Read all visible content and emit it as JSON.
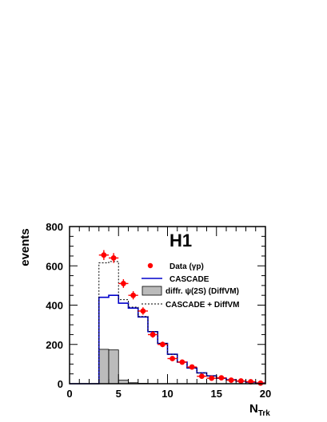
{
  "chart_data": {
    "type": "histogram",
    "experiment_label": "H1",
    "xlabel_main": "N",
    "xlabel_sub": "Trk",
    "ylabel": "events",
    "xlim": [
      0,
      20
    ],
    "ylim": [
      0,
      800
    ],
    "x_ticks": [
      0,
      5,
      10,
      15,
      20
    ],
    "y_ticks": [
      0,
      200,
      400,
      600,
      800
    ],
    "bin_edges": [
      0,
      1,
      2,
      3,
      4,
      5,
      6,
      7,
      8,
      9,
      10,
      11,
      12,
      13,
      14,
      15,
      16,
      17,
      18,
      19,
      20
    ],
    "series": [
      {
        "name": "Data (γp)",
        "kind": "points",
        "color": "#ff0000",
        "x": [
          3.5,
          4.5,
          5.5,
          6.5,
          7.5,
          8.5,
          9.5,
          10.5,
          11.5,
          12.5,
          13.5,
          14.5,
          15.5,
          16.5,
          17.5,
          18.5,
          19.5
        ],
        "y": [
          655,
          640,
          510,
          450,
          370,
          250,
          200,
          128,
          110,
          85,
          38,
          28,
          30,
          18,
          14,
          10,
          3
        ],
        "yerr": [
          25,
          25,
          22,
          21,
          19,
          16,
          14,
          11,
          10,
          9,
          6,
          5,
          5,
          4,
          4,
          3,
          2
        ]
      },
      {
        "name": "CASCADE",
        "kind": "step",
        "color": "#0000cc",
        "values": [
          0,
          0,
          0,
          440,
          450,
          410,
          385,
          340,
          265,
          205,
          150,
          110,
          80,
          55,
          40,
          28,
          20,
          13,
          8,
          4
        ]
      },
      {
        "name": "diffr. ψ(2S) (DiffVM)",
        "kind": "filled",
        "color": "#bbbbbb",
        "values": [
          0,
          0,
          0,
          175,
          172,
          18,
          5,
          2,
          1,
          0,
          0,
          0,
          0,
          0,
          0,
          0,
          0,
          0,
          0,
          0
        ]
      },
      {
        "name": "CASCADE + DiffVM",
        "kind": "dashed-step",
        "color": "#000000",
        "values": [
          0,
          0,
          0,
          615,
          622,
          428,
          390,
          342,
          266,
          205,
          150,
          110,
          80,
          55,
          40,
          28,
          20,
          13,
          8,
          4
        ]
      }
    ],
    "legend_placement": "top-right"
  }
}
